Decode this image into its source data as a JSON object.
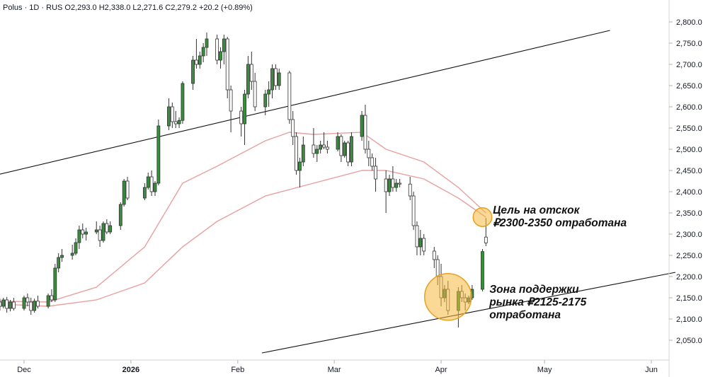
{
  "header": {
    "text": "Polus · 1D · RUS  O2,293.0  H2,338.0  L2,271.6  C2,279.2  +20.2 (+0.89%)"
  },
  "chart_data": {
    "type": "candlestick",
    "symbol": "Polus",
    "timeframe": "1D",
    "exchange": "RUS",
    "ohlc_header": {
      "open": 2293.0,
      "high": 2338.0,
      "low": 2271.6,
      "close": 2279.2,
      "change": 20.2,
      "change_pct": 0.89
    },
    "y_ticks": [
      2050,
      2100,
      2150,
      2200,
      2250,
      2300,
      2350,
      2400,
      2450,
      2500,
      2550,
      2600,
      2650,
      2700,
      2750,
      2800
    ],
    "y_tick_labels": [
      "2,050.0",
      "2,100.0",
      "2,150.0",
      "2,200.0",
      "2,250.0",
      "2,300.0",
      "2,350.0",
      "2,400.0",
      "2,450.0",
      "2,500.0",
      "2,550.0",
      "2,600.0",
      "2,650.0",
      "2,700.0",
      "2,750.0",
      "2,800.0"
    ],
    "ylim": [
      2010,
      2835
    ],
    "x_axis_labels": [
      {
        "text": "Dec",
        "date": "2025-12-01",
        "bold": false
      },
      {
        "text": "2026",
        "date": "2026-01-01",
        "bold": true
      },
      {
        "text": "Feb",
        "date": "2026-02-01",
        "bold": false
      },
      {
        "text": "Mar",
        "date": "2026-03-01",
        "bold": false
      },
      {
        "text": "Apr",
        "date": "2026-04-01",
        "bold": false
      },
      {
        "text": "May",
        "date": "2026-05-01",
        "bold": false
      },
      {
        "text": "Jun",
        "date": "2026-06-01",
        "bold": false
      }
    ],
    "candles": [
      {
        "d": "2025-11-24",
        "o": 2140,
        "h": 2148,
        "l": 2120,
        "c": 2130
      },
      {
        "d": "2025-11-25",
        "o": 2130,
        "h": 2150,
        "l": 2125,
        "c": 2145
      },
      {
        "d": "2025-11-26",
        "o": 2145,
        "h": 2152,
        "l": 2115,
        "c": 2125
      },
      {
        "d": "2025-11-27",
        "o": 2125,
        "h": 2145,
        "l": 2118,
        "c": 2140
      },
      {
        "d": "2025-11-28",
        "o": 2140,
        "h": 2150,
        "l": 2120,
        "c": 2125
      },
      {
        "d": "2025-12-01",
        "o": 2125,
        "h": 2155,
        "l": 2120,
        "c": 2150
      },
      {
        "d": "2025-12-02",
        "o": 2150,
        "h": 2160,
        "l": 2130,
        "c": 2140
      },
      {
        "d": "2025-12-03",
        "o": 2140,
        "h": 2150,
        "l": 2110,
        "c": 2120
      },
      {
        "d": "2025-12-04",
        "o": 2120,
        "h": 2148,
        "l": 2115,
        "c": 2142
      },
      {
        "d": "2025-12-05",
        "o": 2142,
        "h": 2155,
        "l": 2125,
        "c": 2130
      },
      {
        "d": "2025-12-08",
        "o": 2130,
        "h": 2160,
        "l": 2125,
        "c": 2155
      },
      {
        "d": "2025-12-09",
        "o": 2155,
        "h": 2170,
        "l": 2140,
        "c": 2145
      },
      {
        "d": "2025-12-10",
        "o": 2145,
        "h": 2230,
        "l": 2140,
        "c": 2220
      },
      {
        "d": "2025-12-11",
        "o": 2220,
        "h": 2255,
        "l": 2210,
        "c": 2245
      },
      {
        "d": "2025-12-12",
        "o": 2245,
        "h": 2265,
        "l": 2235,
        "c": 2250
      },
      {
        "d": "2025-12-15",
        "o": 2250,
        "h": 2275,
        "l": 2240,
        "c": 2255
      },
      {
        "d": "2025-12-16",
        "o": 2255,
        "h": 2290,
        "l": 2250,
        "c": 2280
      },
      {
        "d": "2025-12-17",
        "o": 2280,
        "h": 2320,
        "l": 2265,
        "c": 2310
      },
      {
        "d": "2025-12-18",
        "o": 2310,
        "h": 2325,
        "l": 2290,
        "c": 2300
      },
      {
        "d": "2025-12-19",
        "o": 2300,
        "h": 2315,
        "l": 2285,
        "c": 2305
      },
      {
        "d": "2025-12-22",
        "o": 2305,
        "h": 2330,
        "l": 2300,
        "c": 2310
      },
      {
        "d": "2025-12-23",
        "o": 2310,
        "h": 2320,
        "l": 2270,
        "c": 2285
      },
      {
        "d": "2025-12-24",
        "o": 2285,
        "h": 2330,
        "l": 2280,
        "c": 2325
      },
      {
        "d": "2025-12-25",
        "o": 2325,
        "h": 2335,
        "l": 2300,
        "c": 2305
      },
      {
        "d": "2025-12-26",
        "o": 2305,
        "h": 2330,
        "l": 2300,
        "c": 2320
      },
      {
        "d": "2025-12-29",
        "o": 2320,
        "h": 2375,
        "l": 2310,
        "c": 2370
      },
      {
        "d": "2025-12-30",
        "o": 2370,
        "h": 2430,
        "l": 2365,
        "c": 2425
      },
      {
        "d": "2025-12-31",
        "o": 2425,
        "h": 2435,
        "l": 2380,
        "c": 2385
      },
      {
        "d": "2026-01-05",
        "o": 2385,
        "h": 2420,
        "l": 2380,
        "c": 2410
      },
      {
        "d": "2026-01-06",
        "o": 2410,
        "h": 2445,
        "l": 2405,
        "c": 2435
      },
      {
        "d": "2026-01-07",
        "o": 2435,
        "h": 2450,
        "l": 2390,
        "c": 2400
      },
      {
        "d": "2026-01-08",
        "o": 2400,
        "h": 2425,
        "l": 2390,
        "c": 2420
      },
      {
        "d": "2026-01-09",
        "o": 2420,
        "h": 2570,
        "l": 2415,
        "c": 2555
      },
      {
        "d": "2026-01-12",
        "o": 2555,
        "h": 2620,
        "l": 2545,
        "c": 2600
      },
      {
        "d": "2026-01-13",
        "o": 2600,
        "h": 2610,
        "l": 2550,
        "c": 2565
      },
      {
        "d": "2026-01-14",
        "o": 2565,
        "h": 2590,
        "l": 2550,
        "c": 2560
      },
      {
        "d": "2026-01-15",
        "o": 2560,
        "h": 2575,
        "l": 2550,
        "c": 2568
      },
      {
        "d": "2026-01-16",
        "o": 2568,
        "h": 2660,
        "l": 2560,
        "c": 2655
      },
      {
        "d": "2026-01-19",
        "o": 2655,
        "h": 2720,
        "l": 2640,
        "c": 2710
      },
      {
        "d": "2026-01-20",
        "o": 2710,
        "h": 2760,
        "l": 2690,
        "c": 2700
      },
      {
        "d": "2026-01-21",
        "o": 2700,
        "h": 2730,
        "l": 2690,
        "c": 2720
      },
      {
        "d": "2026-01-22",
        "o": 2720,
        "h": 2750,
        "l": 2705,
        "c": 2740
      },
      {
        "d": "2026-01-23",
        "o": 2740,
        "h": 2775,
        "l": 2720,
        "c": 2760
      },
      {
        "d": "2026-01-26",
        "o": 2760,
        "h": 2770,
        "l": 2700,
        "c": 2710
      },
      {
        "d": "2026-01-27",
        "o": 2710,
        "h": 2740,
        "l": 2690,
        "c": 2730
      },
      {
        "d": "2026-01-28",
        "o": 2730,
        "h": 2770,
        "l": 2700,
        "c": 2760
      },
      {
        "d": "2026-01-29",
        "o": 2760,
        "h": 2765,
        "l": 2620,
        "c": 2640
      },
      {
        "d": "2026-01-30",
        "o": 2640,
        "h": 2650,
        "l": 2540,
        "c": 2590
      },
      {
        "d": "2026-02-02",
        "o": 2590,
        "h": 2600,
        "l": 2530,
        "c": 2560
      },
      {
        "d": "2026-02-03",
        "o": 2560,
        "h": 2640,
        "l": 2510,
        "c": 2630
      },
      {
        "d": "2026-02-04",
        "o": 2630,
        "h": 2720,
        "l": 2620,
        "c": 2700
      },
      {
        "d": "2026-02-05",
        "o": 2700,
        "h": 2730,
        "l": 2640,
        "c": 2660
      },
      {
        "d": "2026-02-06",
        "o": 2660,
        "h": 2680,
        "l": 2590,
        "c": 2600
      },
      {
        "d": "2026-02-09",
        "o": 2600,
        "h": 2640,
        "l": 2580,
        "c": 2630
      },
      {
        "d": "2026-02-10",
        "o": 2630,
        "h": 2660,
        "l": 2600,
        "c": 2640
      },
      {
        "d": "2026-02-11",
        "o": 2640,
        "h": 2700,
        "l": 2620,
        "c": 2690
      },
      {
        "d": "2026-02-12",
        "o": 2690,
        "h": 2700,
        "l": 2640,
        "c": 2650
      },
      {
        "d": "2026-02-13",
        "o": 2650,
        "h": 2690,
        "l": 2640,
        "c": 2680
      },
      {
        "d": "2026-02-16",
        "o": 2680,
        "h": 2685,
        "l": 2560,
        "c": 2570
      },
      {
        "d": "2026-02-17",
        "o": 2570,
        "h": 2590,
        "l": 2510,
        "c": 2530
      },
      {
        "d": "2026-02-18",
        "o": 2530,
        "h": 2540,
        "l": 2440,
        "c": 2450
      },
      {
        "d": "2026-02-19",
        "o": 2450,
        "h": 2480,
        "l": 2410,
        "c": 2470
      },
      {
        "d": "2026-02-20",
        "o": 2470,
        "h": 2530,
        "l": 2460,
        "c": 2510
      },
      {
        "d": "2026-02-23",
        "o": 2510,
        "h": 2550,
        "l": 2480,
        "c": 2490
      },
      {
        "d": "2026-02-24",
        "o": 2490,
        "h": 2510,
        "l": 2470,
        "c": 2500
      },
      {
        "d": "2026-02-25",
        "o": 2500,
        "h": 2520,
        "l": 2490,
        "c": 2510
      },
      {
        "d": "2026-02-26",
        "o": 2510,
        "h": 2540,
        "l": 2500,
        "c": 2505
      },
      {
        "d": "2026-02-27",
        "o": 2505,
        "h": 2520,
        "l": 2490,
        "c": 2500
      },
      {
        "d": "2026-03-02",
        "o": 2500,
        "h": 2540,
        "l": 2495,
        "c": 2530
      },
      {
        "d": "2026-03-03",
        "o": 2530,
        "h": 2535,
        "l": 2470,
        "c": 2485
      },
      {
        "d": "2026-03-04",
        "o": 2485,
        "h": 2520,
        "l": 2480,
        "c": 2515
      },
      {
        "d": "2026-03-05",
        "o": 2515,
        "h": 2520,
        "l": 2460,
        "c": 2470
      },
      {
        "d": "2026-03-06",
        "o": 2470,
        "h": 2540,
        "l": 2460,
        "c": 2530
      },
      {
        "d": "2026-03-09",
        "o": 2530,
        "h": 2590,
        "l": 2520,
        "c": 2580
      },
      {
        "d": "2026-03-10",
        "o": 2580,
        "h": 2605,
        "l": 2490,
        "c": 2500
      },
      {
        "d": "2026-03-11",
        "o": 2500,
        "h": 2520,
        "l": 2460,
        "c": 2480
      },
      {
        "d": "2026-03-12",
        "o": 2480,
        "h": 2490,
        "l": 2450,
        "c": 2460
      },
      {
        "d": "2026-03-13",
        "o": 2460,
        "h": 2480,
        "l": 2400,
        "c": 2430
      },
      {
        "d": "2026-03-16",
        "o": 2430,
        "h": 2450,
        "l": 2350,
        "c": 2400
      },
      {
        "d": "2026-03-17",
        "o": 2400,
        "h": 2440,
        "l": 2390,
        "c": 2430
      },
      {
        "d": "2026-03-18",
        "o": 2430,
        "h": 2460,
        "l": 2400,
        "c": 2410
      },
      {
        "d": "2026-03-19",
        "o": 2410,
        "h": 2430,
        "l": 2400,
        "c": 2420
      },
      {
        "d": "2026-03-20",
        "o": 2420,
        "h": 2430,
        "l": 2410,
        "c": 2418
      },
      {
        "d": "2026-03-23",
        "o": 2418,
        "h": 2435,
        "l": 2380,
        "c": 2390
      },
      {
        "d": "2026-03-24",
        "o": 2390,
        "h": 2400,
        "l": 2310,
        "c": 2320
      },
      {
        "d": "2026-03-25",
        "o": 2320,
        "h": 2330,
        "l": 2250,
        "c": 2270
      },
      {
        "d": "2026-03-26",
        "o": 2270,
        "h": 2310,
        "l": 2250,
        "c": 2290
      },
      {
        "d": "2026-03-27",
        "o": 2290,
        "h": 2300,
        "l": 2250,
        "c": 2260
      },
      {
        "d": "2026-03-30",
        "o": 2260,
        "h": 2270,
        "l": 2220,
        "c": 2240
      },
      {
        "d": "2026-03-31",
        "o": 2240,
        "h": 2250,
        "l": 2180,
        "c": 2200
      },
      {
        "d": "2026-04-01",
        "o": 2200,
        "h": 2230,
        "l": 2130,
        "c": 2150
      },
      {
        "d": "2026-04-02",
        "o": 2150,
        "h": 2180,
        "l": 2140,
        "c": 2170
      },
      {
        "d": "2026-04-03",
        "o": 2170,
        "h": 2190,
        "l": 2110,
        "c": 2120
      },
      {
        "d": "2026-04-06",
        "o": 2120,
        "h": 2175,
        "l": 2080,
        "c": 2165
      },
      {
        "d": "2026-04-07",
        "o": 2165,
        "h": 2180,
        "l": 2140,
        "c": 2150
      },
      {
        "d": "2026-04-08",
        "o": 2150,
        "h": 2160,
        "l": 2120,
        "c": 2140
      },
      {
        "d": "2026-04-09",
        "o": 2140,
        "h": 2155,
        "l": 2135,
        "c": 2150
      },
      {
        "d": "2026-04-10",
        "o": 2150,
        "h": 2180,
        "l": 2145,
        "c": 2170
      },
      {
        "d": "2026-04-13",
        "o": 2170,
        "h": 2265,
        "l": 2165,
        "c": 2259
      },
      {
        "d": "2026-04-14",
        "o": 2293,
        "h": 2338,
        "l": 2271.6,
        "c": 2279.2
      }
    ],
    "moving_averages": [
      {
        "color": "#e8a0a0",
        "points": [
          [
            "2025-11-24",
            2142
          ],
          [
            "2025-12-08",
            2140
          ],
          [
            "2025-12-22",
            2175
          ],
          [
            "2026-01-05",
            2270
          ],
          [
            "2026-01-16",
            2420
          ],
          [
            "2026-01-26",
            2460
          ],
          [
            "2026-02-09",
            2520
          ],
          [
            "2026-02-16",
            2540
          ],
          [
            "2026-02-23",
            2535
          ],
          [
            "2026-03-09",
            2540
          ],
          [
            "2026-03-16",
            2500
          ],
          [
            "2026-03-27",
            2470
          ],
          [
            "2026-04-06",
            2410
          ],
          [
            "2026-04-14",
            2350
          ]
        ]
      },
      {
        "color": "#e8a0a0",
        "points": [
          [
            "2025-11-24",
            2135
          ],
          [
            "2025-12-08",
            2130
          ],
          [
            "2025-12-22",
            2145
          ],
          [
            "2026-01-05",
            2185
          ],
          [
            "2026-01-16",
            2270
          ],
          [
            "2026-01-26",
            2330
          ],
          [
            "2026-02-09",
            2390
          ],
          [
            "2026-02-23",
            2420
          ],
          [
            "2026-03-09",
            2450
          ],
          [
            "2026-03-16",
            2450
          ],
          [
            "2026-03-27",
            2430
          ],
          [
            "2026-04-06",
            2385
          ],
          [
            "2026-04-14",
            2340
          ]
        ]
      }
    ],
    "trendlines": [
      {
        "color": "#111111",
        "from": [
          "2025-11-17",
          2428
        ],
        "to": [
          "2026-05-20",
          2780
        ]
      },
      {
        "color": "#111111",
        "from": [
          "2026-02-08",
          2020
        ],
        "to": [
          "2026-06-08",
          2210
        ]
      }
    ],
    "highlight_circles": [
      {
        "date": "2026-04-13",
        "price": 2340,
        "radius_price": 22,
        "color": "#f5b942"
      },
      {
        "date": "2026-04-03",
        "price": 2152,
        "radius_price": 55,
        "color": "#f5b942"
      }
    ],
    "annotations": [
      {
        "lines": [
          "Цель на отскок",
          "₽2300-2350 отработана"
        ],
        "anchor_date": "2026-04-16",
        "anchor_price": 2348
      },
      {
        "lines": [
          "Зона поддержки",
          "рынка ₽2125-2175",
          "отработана"
        ],
        "anchor_date": "2026-04-15",
        "anchor_price": 2162
      }
    ],
    "up_color": "#388e3c",
    "down_color": "#ffffff",
    "wick_color": "#333333",
    "grid": false
  }
}
